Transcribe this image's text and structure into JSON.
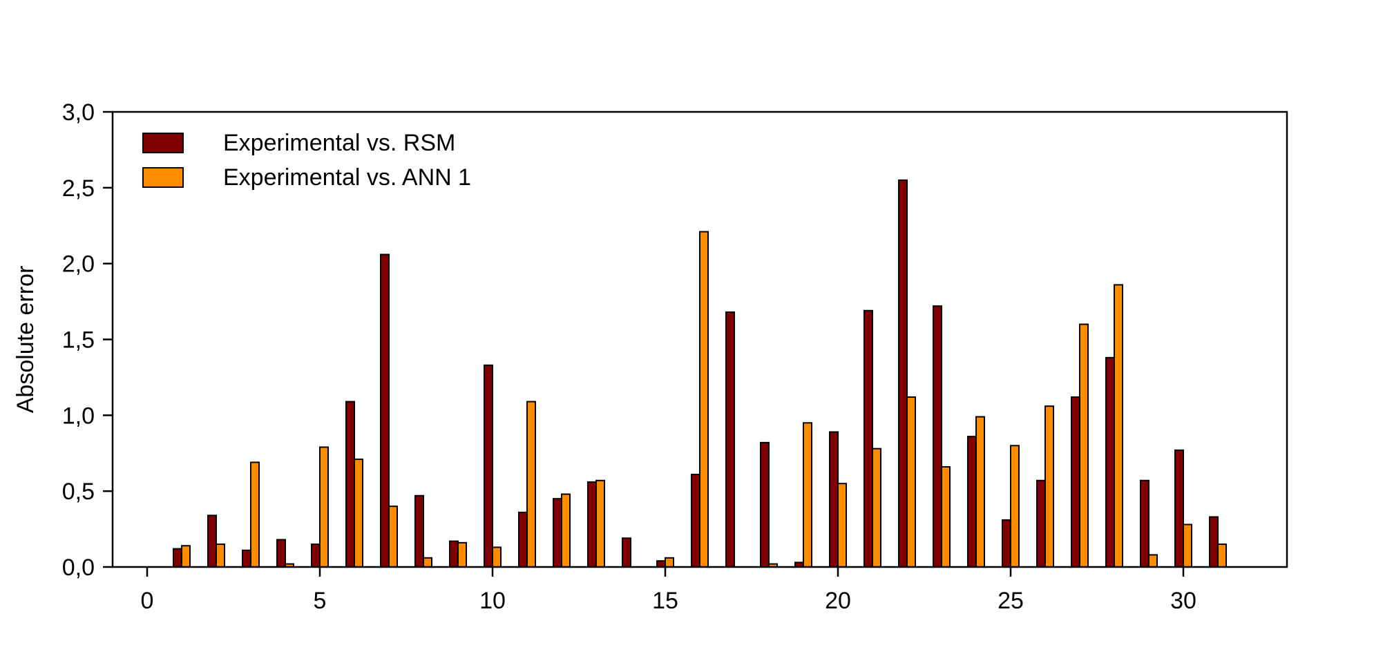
{
  "chart_data": {
    "type": "bar",
    "title": "",
    "xlabel": "",
    "ylabel": "Absolute error",
    "xlim": [
      -1,
      33
    ],
    "ylim": [
      0,
      3.0
    ],
    "x_ticks": [
      "0",
      "5",
      "10",
      "15",
      "20",
      "25",
      "30"
    ],
    "x_tick_values": [
      0,
      5,
      10,
      15,
      20,
      25,
      30
    ],
    "y_ticks": [
      "0,0",
      "0,5",
      "1,0",
      "1,5",
      "2,0",
      "2,5",
      "3,0"
    ],
    "y_tick_values": [
      0,
      0.5,
      1.0,
      1.5,
      2.0,
      2.5,
      3.0
    ],
    "grid": false,
    "legend_position": "top-left",
    "x": [
      1,
      2,
      3,
      4,
      5,
      6,
      7,
      8,
      9,
      10,
      11,
      12,
      13,
      14,
      15,
      16,
      17,
      18,
      19,
      20,
      21,
      22,
      23,
      24,
      25,
      26,
      27,
      28,
      29,
      30,
      31
    ],
    "series": [
      {
        "name": "Experimental vs. RSM",
        "color": "#800000",
        "values": [
          0.12,
          0.34,
          0.11,
          0.18,
          0.15,
          1.09,
          2.06,
          0.47,
          0.17,
          1.33,
          0.36,
          0.45,
          0.56,
          0.19,
          0.04,
          0.61,
          1.68,
          0.82,
          0.03,
          0.89,
          1.69,
          2.55,
          1.72,
          0.86,
          0.31,
          0.57,
          1.12,
          1.38,
          0.57,
          0.77,
          0.33
        ]
      },
      {
        "name": "Experimental vs. ANN 1",
        "color": "#ff8c00",
        "values": [
          0.14,
          0.15,
          0.69,
          0.02,
          0.79,
          0.71,
          0.4,
          0.06,
          0.16,
          0.13,
          1.09,
          0.48,
          0.57,
          0.0,
          0.06,
          2.21,
          0.0,
          0.02,
          0.95,
          0.55,
          0.78,
          1.12,
          0.66,
          0.99,
          0.8,
          1.06,
          1.6,
          1.86,
          0.08,
          0.28,
          0.15
        ]
      }
    ]
  }
}
